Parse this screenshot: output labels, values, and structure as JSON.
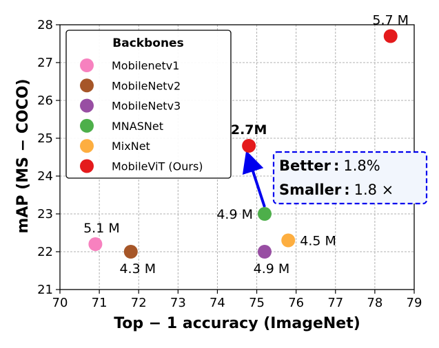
{
  "chart_data": {
    "type": "scatter",
    "xlabel": "Top − 1 accuracy (ImageNet)",
    "ylabel": "mAP (MS − COCO)",
    "xlim": [
      70,
      79
    ],
    "ylim": [
      21,
      28
    ],
    "xticks": [
      "70",
      "71",
      "72",
      "73",
      "74",
      "75",
      "76",
      "77",
      "78",
      "79"
    ],
    "yticks": [
      "21",
      "22",
      "23",
      "24",
      "25",
      "26",
      "27",
      "28"
    ],
    "grid": true,
    "legend": {
      "title": "Backbones",
      "placement": "top-left"
    },
    "series": [
      {
        "name": "Mobilenetv1",
        "color": "#f781bf",
        "points": [
          {
            "x": 70.9,
            "y": 22.2,
            "label": "5.1 M",
            "label_pos": "above"
          }
        ]
      },
      {
        "name": "MobileNetv2",
        "color": "#a65628",
        "points": [
          {
            "x": 71.8,
            "y": 22.0,
            "label": "4.3 M",
            "label_pos": "below"
          }
        ]
      },
      {
        "name": "MobileNetv3",
        "color": "#984ea3",
        "points": [
          {
            "x": 75.2,
            "y": 22.0,
            "label": "4.9 M",
            "label_pos": "below"
          }
        ]
      },
      {
        "name": "MNASNet",
        "color": "#4daf4a",
        "points": [
          {
            "x": 75.2,
            "y": 23.0,
            "label": "4.9 M",
            "label_pos": "left"
          }
        ]
      },
      {
        "name": "MixNet",
        "color": "#fdae40",
        "points": [
          {
            "x": 75.8,
            "y": 22.3,
            "label": "4.5 M",
            "label_pos": "right"
          }
        ]
      },
      {
        "name": "MobileViT (Ours)",
        "color": "#e41a1c",
        "points": [
          {
            "x": 74.8,
            "y": 24.8,
            "label": "2.7M",
            "label_pos": "above",
            "bold": true
          },
          {
            "x": 78.4,
            "y": 27.7,
            "label": "5.7 M",
            "label_pos": "above"
          }
        ]
      }
    ],
    "arrow": {
      "from": {
        "x": 75.2,
        "y": 23.0
      },
      "to": {
        "x": 74.8,
        "y": 24.8
      },
      "color": "#0000ee"
    },
    "annotation_box": {
      "border_color": "#0000ee",
      "background": "#f2f6fd",
      "lines": [
        {
          "label": "Better",
          "sep": ":",
          "value": "1.8%"
        },
        {
          "label": "Smaller",
          "sep": ":",
          "value": "1.8 ×"
        }
      ]
    }
  }
}
